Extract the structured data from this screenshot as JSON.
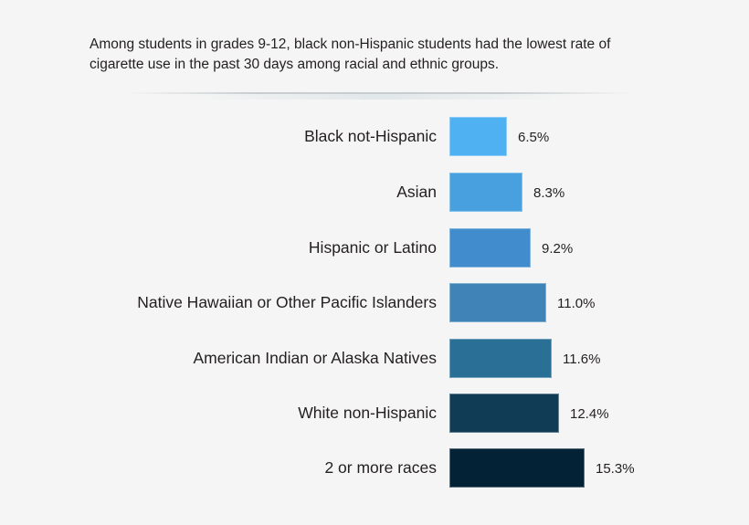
{
  "chart_data": {
    "type": "bar",
    "orientation": "horizontal",
    "title": "Among students in grades 9-12, black non-Hispanic students had the lowest rate of cigarette use in the past 30 days among racial and ethnic groups.",
    "xlabel": "",
    "ylabel": "",
    "grid": false,
    "legend": null,
    "categories": [
      "Black not-Hispanic",
      "Asian",
      "Hispanic or Latino",
      "Native Hawaiian or Other Pacific Islanders",
      "American Indian or Alaska Natives",
      "White non-Hispanic",
      "2 or more races"
    ],
    "values": [
      6.5,
      8.3,
      9.2,
      11.0,
      11.6,
      12.4,
      15.3
    ],
    "value_labels": [
      "6.5%",
      "8.3%",
      "9.2%",
      "11.0%",
      "11.6%",
      "12.4%",
      "15.3%"
    ],
    "unit": "%",
    "colors": [
      "#4fb0f2",
      "#48a1de",
      "#408ccd",
      "#3f83b7",
      "#2a6f95",
      "#113c56",
      "#042236"
    ]
  },
  "header": {
    "title_line1": "Among students in grades 9-12, black non-Hispanic students had the lowest rate of",
    "title_line2": "cigarette use in the past 30 days among racial and ethnic groups."
  }
}
